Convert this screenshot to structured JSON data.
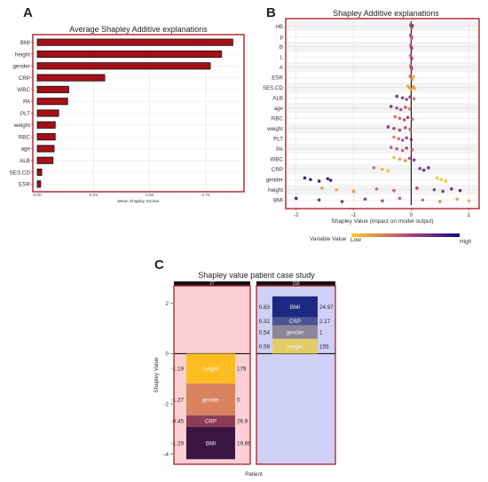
{
  "panels": {
    "a": {
      "letter": "A",
      "title": "Average Shapley Additive explanations"
    },
    "b": {
      "letter": "B",
      "title": "Shapley Additive explanations"
    },
    "c": {
      "letter": "C",
      "title": "Shapley value patient case study"
    }
  },
  "chart_data": [
    {
      "type": "bar",
      "orientation": "horizontal",
      "title": "Average Shapley Additive explanations",
      "xlabel": "Mean Shapley Scores",
      "ylabel": "",
      "xlim": [
        0,
        0.9
      ],
      "xticks": [
        "0.00",
        "0.25",
        "0.50",
        "0.75"
      ],
      "xtick_values": [
        0,
        0.25,
        0.5,
        0.75
      ],
      "categories": [
        "BMI",
        "height",
        "gender",
        "CRP",
        "WBC",
        "PA",
        "PLT",
        "weight",
        "RBC",
        "age",
        "ALB",
        "SES.CD",
        "ESR"
      ],
      "values": [
        0.87,
        0.82,
        0.77,
        0.3,
        0.14,
        0.135,
        0.095,
        0.08,
        0.08,
        0.075,
        0.07,
        0.02,
        0.015
      ],
      "bar_color": "#a50f15",
      "grid": true
    },
    {
      "type": "scatter",
      "title": "Shapley Additive explanations",
      "xlabel": "Shapley Value (impact on model output)",
      "ylabel": "",
      "xlim": [
        -2.15,
        1.15
      ],
      "xticks": [
        "-2",
        "-1",
        "0",
        "1"
      ],
      "xtick_values": [
        -2,
        -1,
        0,
        1
      ],
      "features": [
        "HB",
        "p",
        "B",
        "L",
        "A",
        "ESR",
        "SES.CD",
        "ALB",
        "age",
        "RBC",
        "weight",
        "PLT",
        "PA",
        "WBC",
        "CRP",
        "gender",
        "height",
        "BMI"
      ],
      "legend": {
        "title": "Variable Value",
        "low": "Low",
        "high": "High",
        "low_color": "#f7d117",
        "mid_color": "#c1497a",
        "high_color": "#0d0887"
      },
      "series": [
        {
          "feature": "HB",
          "x": [
            -0.01,
            0.0,
            0.01,
            0.02
          ],
          "value": [
            0.5,
            0.6,
            0.4,
            0.7
          ]
        },
        {
          "feature": "p",
          "x": [
            -0.01,
            0.0,
            0.01
          ],
          "value": [
            0.5,
            0.6,
            0.4
          ]
        },
        {
          "feature": "B",
          "x": [
            -0.01,
            0.0,
            0.01
          ],
          "value": [
            0.4,
            0.5,
            0.6
          ]
        },
        {
          "feature": "L",
          "x": [
            -0.01,
            0.0,
            0.01
          ],
          "value": [
            0.5,
            0.4,
            0.6
          ]
        },
        {
          "feature": "A",
          "x": [
            -0.01,
            0.0,
            0.01
          ],
          "value": [
            0.3,
            0.6,
            0.5
          ]
        },
        {
          "feature": "ESR",
          "x": [
            -0.02,
            0.0,
            0.02,
            0.04
          ],
          "value": [
            0.3,
            0.5,
            0.2,
            0.1
          ]
        },
        {
          "feature": "SES.CD",
          "x": [
            -0.06,
            -0.03,
            0.0,
            0.03,
            0.06
          ],
          "value": [
            0.1,
            0.2,
            0.1,
            0.3,
            0.15
          ]
        },
        {
          "feature": "ALB",
          "x": [
            -0.25,
            -0.15,
            -0.08,
            -0.02,
            0.05
          ],
          "value": [
            0.8,
            0.7,
            0.6,
            0.65,
            0.4
          ]
        },
        {
          "feature": "age",
          "x": [
            -0.35,
            -0.25,
            -0.18,
            -0.1,
            -0.03
          ],
          "value": [
            0.7,
            0.6,
            0.55,
            0.5,
            0.3
          ]
        },
        {
          "feature": "RBC",
          "x": [
            -0.28,
            -0.2,
            -0.12,
            -0.06,
            0.02
          ],
          "value": [
            0.35,
            0.45,
            0.5,
            0.6,
            0.4
          ]
        },
        {
          "feature": "weight",
          "x": [
            -0.4,
            -0.3,
            -0.2,
            -0.1,
            -0.02
          ],
          "value": [
            0.7,
            0.65,
            0.6,
            0.55,
            0.4
          ]
        },
        {
          "feature": "PLT",
          "x": [
            -0.3,
            -0.22,
            -0.15,
            -0.08,
            0.0
          ],
          "value": [
            0.3,
            0.4,
            0.5,
            0.6,
            0.7
          ]
        },
        {
          "feature": "PA",
          "x": [
            -0.35,
            -0.25,
            -0.15,
            -0.08,
            0.02
          ],
          "value": [
            0.5,
            0.55,
            0.45,
            0.6,
            0.4
          ]
        },
        {
          "feature": "WBC",
          "x": [
            -0.3,
            -0.2,
            -0.1,
            -0.03,
            0.05
          ],
          "value": [
            0.1,
            0.2,
            0.3,
            0.5,
            0.7
          ]
        },
        {
          "feature": "CRP",
          "x": [
            -0.65,
            -0.5,
            -0.4,
            0.15,
            0.22,
            0.3
          ],
          "value": [
            0.4,
            0.1,
            0.05,
            0.7,
            0.8,
            0.75
          ]
        },
        {
          "feature": "gender",
          "x": [
            -1.85,
            -1.75,
            -1.6,
            -1.45,
            -1.4,
            0.45,
            0.52,
            0.6
          ],
          "value": [
            0.95,
            0.95,
            0.95,
            0.95,
            0.95,
            0.05,
            0.05,
            0.05
          ]
        },
        {
          "feature": "height",
          "x": [
            -1.55,
            -1.3,
            -1.0,
            -0.6,
            -0.3,
            0.1,
            0.4,
            0.55,
            0.7,
            0.85
          ],
          "value": [
            0.2,
            0.15,
            0.25,
            0.4,
            0.5,
            0.6,
            0.7,
            0.75,
            0.8,
            0.85
          ]
        },
        {
          "feature": "BMI",
          "x": [
            -2.0,
            -1.6,
            -1.2,
            -0.8,
            -0.5,
            -0.2,
            0.2,
            0.5,
            0.8,
            1.0
          ],
          "value": [
            0.9,
            0.8,
            0.75,
            0.7,
            0.6,
            0.5,
            0.4,
            0.3,
            0.2,
            0.1
          ]
        }
      ]
    },
    {
      "type": "bar",
      "subtype": "stacked-waterfall",
      "title": "Shapley value patient case study",
      "xlabel": "Patient",
      "ylabel": "Shapley Value",
      "ylim": [
        -4.4,
        2.7
      ],
      "yticks": [
        "2",
        "0",
        "-2",
        "-4"
      ],
      "ytick_values": [
        2,
        0,
        -2,
        -4
      ],
      "facets": [
        {
          "label": "27",
          "background": "#fcd0d2",
          "segments": [
            {
              "name": "height",
              "shap": "-1.19",
              "value": "179",
              "start": 0,
              "end": -1.19,
              "color": "#fbbd23"
            },
            {
              "name": "gender",
              "shap": "-1.27",
              "value": "0",
              "start": -1.19,
              "end": -2.46,
              "color": "#d9825f"
            },
            {
              "name": "CRP",
              "shap": "-0.45",
              "value": "26.9",
              "start": -2.46,
              "end": -2.91,
              "color": "#8a3d54"
            },
            {
              "name": "BMI",
              "shap": "-1.29",
              "value": "19.66",
              "start": -2.91,
              "end": -4.2,
              "color": "#3b1643"
            }
          ]
        },
        {
          "label": "158",
          "background": "#cfd0f5",
          "segments": [
            {
              "name": "BMI",
              "shap": "0.83",
              "value": "24.97",
              "start": 2.28,
              "end": 1.45,
              "color": "#1b2a80"
            },
            {
              "name": "CRP",
              "shap": "0.32",
              "value": "2.17",
              "start": 1.45,
              "end": 1.13,
              "color": "#4b5493"
            },
            {
              "name": "gender",
              "shap": "0.54",
              "value": "1",
              "start": 1.13,
              "end": 0.59,
              "color": "#8d8698"
            },
            {
              "name": "height",
              "shap": "0.59",
              "value": "155",
              "start": 0.59,
              "end": 0.0,
              "color": "#e3cc66"
            }
          ]
        }
      ]
    }
  ]
}
